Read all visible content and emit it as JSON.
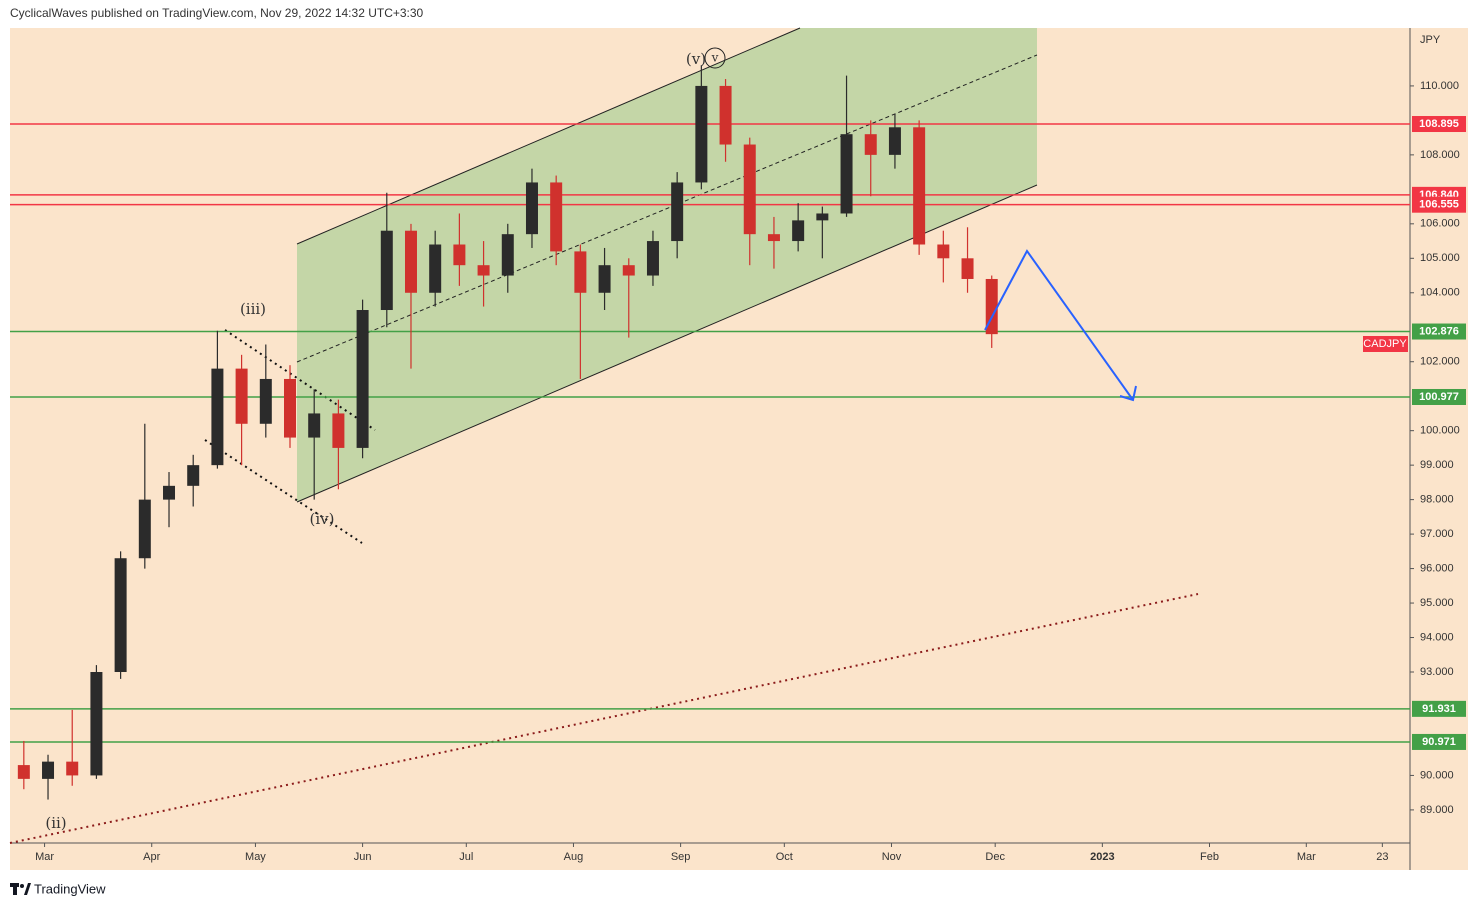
{
  "header": "CyclicalWaves published on TradingView.com, Nov 29, 2022 14:32 UTC+3:30",
  "footer": "TradingView",
  "chart_data": {
    "type": "candlestick",
    "symbol": "CADJPY",
    "currency": "JPY",
    "up_color": "#2b2b2b",
    "down_color": "#d0312d",
    "x": [
      "2022-02-21",
      "2022-02-28",
      "2022-03-07",
      "2022-03-14",
      "2022-03-21",
      "2022-03-28",
      "2022-04-04",
      "2022-04-11",
      "2022-04-18",
      "2022-04-25",
      "2022-05-02",
      "2022-05-09",
      "2022-05-16",
      "2022-05-23",
      "2022-05-30",
      "2022-06-06",
      "2022-06-13",
      "2022-06-20",
      "2022-06-27",
      "2022-07-04",
      "2022-07-11",
      "2022-07-18",
      "2022-07-25",
      "2022-08-01",
      "2022-08-08",
      "2022-08-15",
      "2022-08-22",
      "2022-08-29",
      "2022-09-05",
      "2022-09-12",
      "2022-09-19",
      "2022-09-26",
      "2022-10-03",
      "2022-10-10",
      "2022-10-17",
      "2022-10-24",
      "2022-10-31",
      "2022-11-07",
      "2022-11-14",
      "2022-11-21",
      "2022-11-28"
    ],
    "open": [
      90.3,
      89.9,
      90.4,
      90.0,
      93.0,
      96.3,
      98.0,
      98.4,
      99.0,
      101.8,
      100.2,
      101.5,
      99.8,
      100.5,
      99.5,
      103.5,
      105.8,
      104.0,
      105.4,
      104.8,
      104.5,
      105.7,
      107.2,
      105.2,
      104.0,
      104.8,
      104.5,
      105.5,
      107.2,
      110.0,
      108.3,
      105.7,
      105.5,
      106.1,
      106.3,
      108.6,
      108.0,
      108.8,
      105.4,
      105.0,
      104.4
    ],
    "high": [
      91.0,
      90.6,
      91.9,
      93.2,
      96.5,
      100.2,
      98.8,
      99.3,
      102.9,
      102.2,
      102.5,
      101.9,
      101.2,
      100.9,
      103.8,
      106.9,
      106.0,
      105.8,
      106.3,
      105.5,
      106.0,
      107.6,
      107.4,
      105.4,
      105.3,
      105.0,
      105.8,
      107.5,
      110.6,
      110.2,
      108.5,
      106.2,
      106.6,
      106.5,
      110.3,
      109.0,
      109.2,
      109.0,
      105.8,
      105.9,
      104.5
    ],
    "low": [
      89.6,
      89.3,
      89.7,
      89.9,
      92.8,
      96.0,
      97.2,
      97.8,
      98.9,
      99.0,
      99.8,
      99.5,
      98.0,
      98.3,
      99.2,
      103.0,
      101.8,
      103.6,
      104.2,
      103.6,
      104.0,
      105.3,
      104.8,
      101.5,
      103.5,
      102.7,
      104.2,
      105.0,
      107.0,
      107.8,
      104.8,
      104.7,
      105.2,
      105.0,
      106.2,
      106.8,
      107.6,
      105.1,
      104.3,
      104.0,
      102.4
    ],
    "close": [
      89.9,
      90.4,
      90.0,
      93.0,
      96.3,
      98.0,
      98.4,
      99.0,
      101.8,
      100.2,
      101.5,
      99.8,
      100.5,
      99.5,
      103.5,
      105.8,
      104.0,
      105.4,
      104.8,
      104.5,
      105.7,
      107.2,
      105.2,
      104.0,
      104.8,
      104.5,
      105.5,
      107.2,
      110.0,
      108.3,
      105.7,
      105.5,
      106.1,
      106.3,
      108.6,
      108.0,
      108.8,
      105.4,
      105.0,
      104.4,
      102.8
    ],
    "xlim": [
      "2022-02-19",
      "2023-03-31"
    ],
    "xticks": [
      {
        "value": "2022-03-01",
        "label": "Mar"
      },
      {
        "value": "2022-04-01",
        "label": "Apr"
      },
      {
        "value": "2022-05-01",
        "label": "May"
      },
      {
        "value": "2022-06-01",
        "label": "Jun"
      },
      {
        "value": "2022-07-01",
        "label": "Jul"
      },
      {
        "value": "2022-08-01",
        "label": "Aug"
      },
      {
        "value": "2022-09-01",
        "label": "Sep"
      },
      {
        "value": "2022-10-01",
        "label": "Oct"
      },
      {
        "value": "2022-11-01",
        "label": "Nov"
      },
      {
        "value": "2022-12-01",
        "label": "Dec"
      },
      {
        "value": "2023-01-01",
        "label": "2023"
      },
      {
        "value": "2023-02-01",
        "label": "Feb"
      },
      {
        "value": "2023-03-01",
        "label": "Mar"
      },
      {
        "value": "2023-03-23",
        "label": "23"
      }
    ],
    "ylim": [
      88.04,
      111.68
    ],
    "yticks": [
      {
        "value": 89,
        "label": "89.000"
      },
      {
        "value": 90,
        "label": "90.000"
      },
      {
        "value": 93,
        "label": "93.000"
      },
      {
        "value": 94,
        "label": "94.000"
      },
      {
        "value": 95,
        "label": "95.000"
      },
      {
        "value": 96,
        "label": "96.000"
      },
      {
        "value": 97,
        "label": "97.000"
      },
      {
        "value": 98,
        "label": "98.000"
      },
      {
        "value": 99,
        "label": "99.000"
      },
      {
        "value": 100,
        "label": "100.000"
      },
      {
        "value": 102,
        "label": "102.000"
      },
      {
        "value": 104,
        "label": "104.000"
      },
      {
        "value": 105,
        "label": "105.000"
      },
      {
        "value": 106,
        "label": "106.000"
      },
      {
        "value": 108,
        "label": "108.000"
      },
      {
        "value": 110,
        "label": "110.000"
      }
    ],
    "levels": [
      {
        "value": 108.895,
        "label": "108.895",
        "color": "#f23645"
      },
      {
        "value": 106.84,
        "label": "106.840",
        "color": "#f23645"
      },
      {
        "value": 106.555,
        "label": "106.555",
        "color": "#f23645"
      },
      {
        "value": 102.876,
        "label": "102.876",
        "color": "#43a047"
      },
      {
        "value": 100.977,
        "label": "100.977",
        "color": "#43a047"
      },
      {
        "value": 91.931,
        "label": "91.931",
        "color": "#43a047"
      },
      {
        "value": 90.971,
        "label": "90.971",
        "color": "#43a047"
      }
    ],
    "annotations": [
      "(v)",
      "v",
      "(iii)",
      "(iv)",
      "(ii)"
    ]
  }
}
